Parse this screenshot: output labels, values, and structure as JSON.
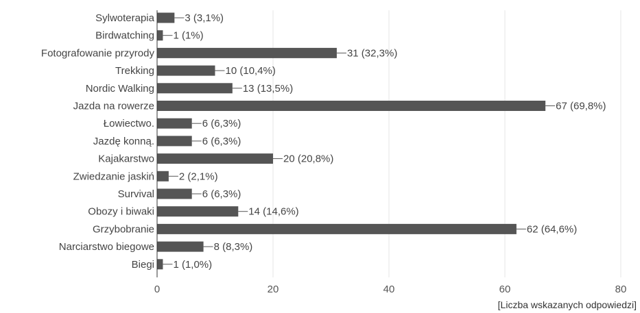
{
  "chart_data": {
    "type": "bar",
    "orientation": "horizontal",
    "categories": [
      "Sylwoterapia",
      "Birdwatching",
      "Fotografowanie przyrody",
      "Trekking",
      "Nordic Walking",
      "Jazda na rowerze",
      "Łowiectwo.",
      "Jazdę konną.",
      "Kajakarstwo",
      "Zwiedzanie jaskiń",
      "Survival",
      "Obozy i biwaki",
      "Grzybobranie",
      "Narciarstwo biegowe",
      "Biegi"
    ],
    "values": [
      3,
      1,
      31,
      10,
      13,
      67,
      6,
      6,
      20,
      2,
      6,
      14,
      62,
      8,
      1
    ],
    "data_labels": [
      "3 (3,1%)",
      "1 (1%)",
      "31 (32,3%)",
      "10 (10,4%)",
      "13 (13,5%)",
      "67 (69,8%)",
      "6 (6,3%)",
      "6 (6,3%)",
      "20 (20,8%)",
      "2 (2,1%)",
      "6 (6,3%)",
      "14 (14,6%)",
      "62 (64,6%)",
      "8 (8,3%)",
      "1 (1,0%)"
    ],
    "xlim": [
      0,
      80
    ],
    "xticks": [
      0,
      20,
      40,
      60,
      80
    ],
    "xlabel": "[Liczba wskazanych odpowiedzi]",
    "ylabel": "",
    "title": "",
    "grid": true,
    "colors": {
      "bar": "#555555",
      "grid": "#e6e6e6",
      "text": "#444444"
    }
  }
}
